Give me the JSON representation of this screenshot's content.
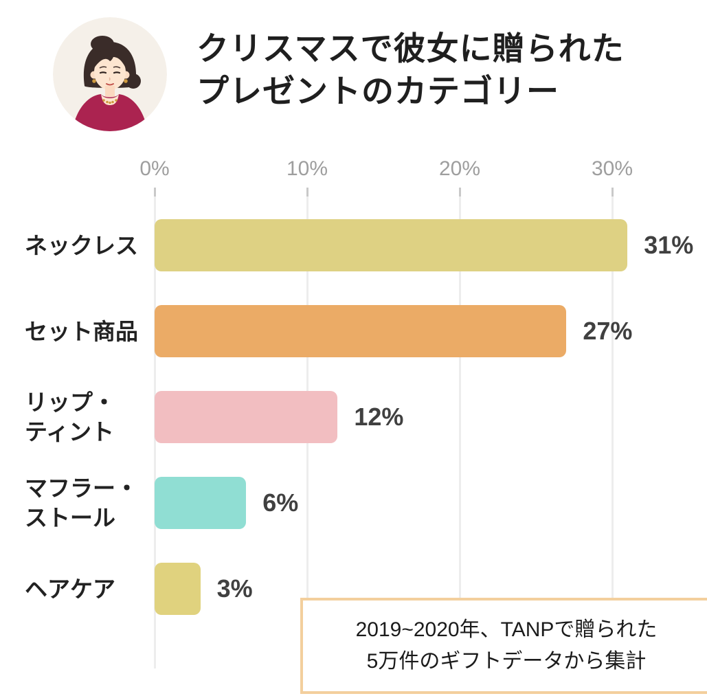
{
  "header": {
    "title_line1": "クリスマスで彼女に贈られた",
    "title_line2": "プレゼントのカテゴリー"
  },
  "chart_data": {
    "type": "bar",
    "orientation": "horizontal",
    "title": "クリスマスで彼女に贈られたプレゼントのカテゴリー",
    "categories": [
      "ネックレス",
      "セット商品",
      "リップ・ティント",
      "マフラー・ストール",
      "ヘアケア"
    ],
    "category_label_lines": [
      [
        "ネックレス"
      ],
      [
        "セット商品"
      ],
      [
        "リップ・",
        "ティント"
      ],
      [
        "マフラー・",
        "ストール"
      ],
      [
        "ヘアケア"
      ]
    ],
    "values": [
      31,
      27,
      12,
      6,
      3
    ],
    "value_labels": [
      "31%",
      "27%",
      "12%",
      "6%",
      "3%"
    ],
    "bar_colors": [
      "#ded183",
      "#ebab66",
      "#f2bec1",
      "#90ded3",
      "#e0d27e"
    ],
    "x_ticks": [
      {
        "label": "0%",
        "value": 0
      },
      {
        "label": "10%",
        "value": 10
      },
      {
        "label": "20%",
        "value": 20
      },
      {
        "label": "30%",
        "value": 30
      }
    ],
    "xlim": [
      0,
      36
    ],
    "grid": true,
    "legend": "none",
    "source_note": "2019~2020年、TANPで贈られた5万件のギフトデータから集計"
  },
  "footer": {
    "note_line1": "2019~2020年、TANPで贈られた",
    "note_line2": "5万件のギフトデータから集計"
  },
  "colors": {
    "title_text": "#1f1f1f",
    "category_text": "#222222",
    "value_text": "#404040",
    "axis_text": "#9e9e9e",
    "gridline": "#ededed",
    "tick": "#c9c9c9",
    "note_border": "#f3cf9d",
    "avatar_bg": "#f5f0e9",
    "background": "#ffffff"
  }
}
